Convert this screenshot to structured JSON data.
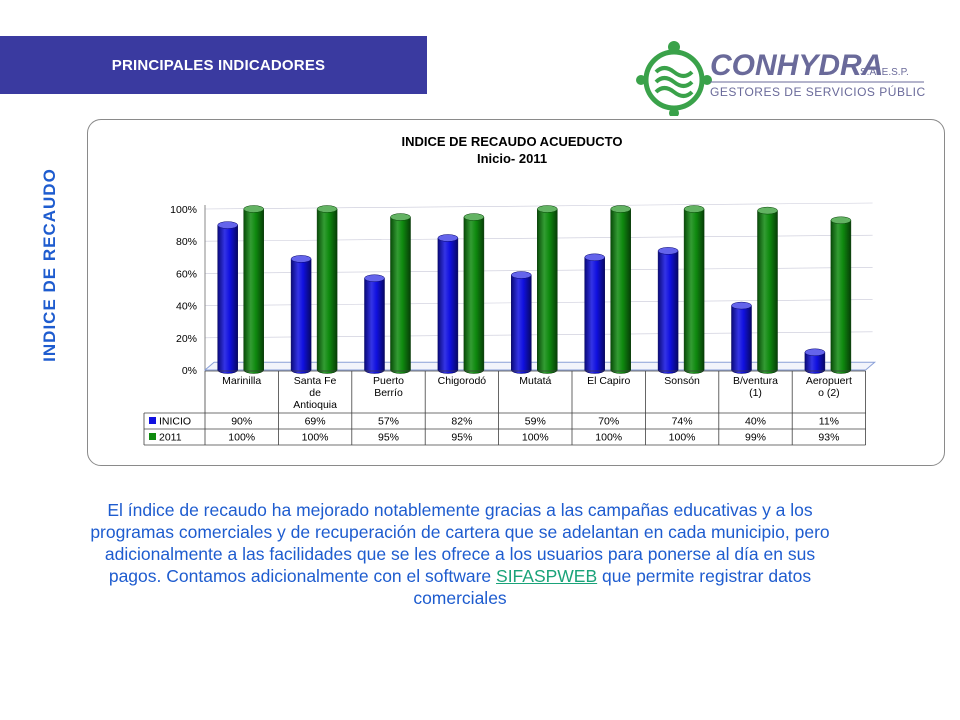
{
  "header": {
    "title": "PRINCIPALES INDICADORES",
    "band_color": "#3a3aa0"
  },
  "logo": {
    "brand": "CONHYDRA",
    "suffix": "S.A.  E.S.P.",
    "tagline": "GESTORES DE SERVICIOS PÚBLICOS",
    "brand_color": "#6a6a9a",
    "icon_color": "#3aa24a"
  },
  "side_title": "INDICE DE RECAUDO",
  "chart_data": {
    "type": "bar",
    "title": "INDICE DE RECAUDO ACUEDUCTO",
    "subtitle": "Inicio-  2011",
    "categories": [
      [
        "Marinilla"
      ],
      [
        "Santa Fe",
        "de",
        "Antioquia"
      ],
      [
        "Puerto",
        "Berrío"
      ],
      [
        "Chigorodó"
      ],
      [
        "Mutatá"
      ],
      [
        "El Capiro"
      ],
      [
        "Sonsón"
      ],
      [
        "B/ventura",
        "(1)"
      ],
      [
        "Aeropuert",
        "o (2)"
      ]
    ],
    "series": [
      {
        "name": "INICIO",
        "color": "#1010e0",
        "values": [
          90,
          69,
          57,
          82,
          59,
          70,
          74,
          40,
          11
        ],
        "labels": [
          "90%",
          "69%",
          "57%",
          "82%",
          "59%",
          "70%",
          "74%",
          "40%",
          "11%"
        ]
      },
      {
        "name": "2011",
        "color": "#0f8a0f",
        "values": [
          100,
          100,
          95,
          95,
          100,
          100,
          100,
          99,
          93
        ],
        "labels": [
          "100%",
          "100%",
          "95%",
          "95%",
          "100%",
          "100%",
          "100%",
          "99%",
          "93%"
        ]
      }
    ],
    "yticks": [
      "0%",
      "20%",
      "40%",
      "60%",
      "80%",
      "100%"
    ],
    "ylim": [
      0,
      100
    ],
    "legend": "data-table"
  },
  "paragraph": {
    "text_before": "El índice de recaudo ha mejorado notablemente gracias a las campañas educativas y a los programas comerciales y de recuperación de cartera que se adelantan en cada municipio, pero adicionalmente a las facilidades que se les ofrece a los usuarios para ponerse al día en sus pagos.  Contamos adicionalmente con el software ",
    "link_text": "SIFASPWEB",
    "text_after": " que permite registrar datos comerciales"
  }
}
